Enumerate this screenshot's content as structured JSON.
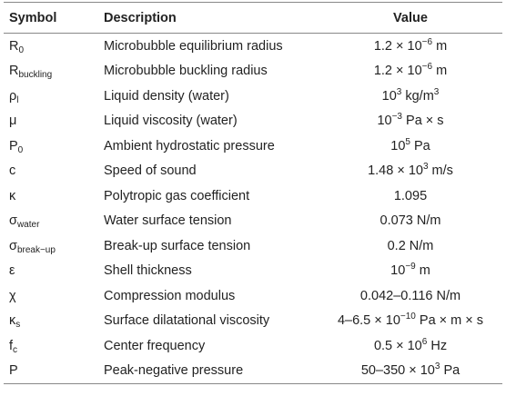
{
  "table": {
    "header": [
      "Symbol",
      "Description",
      "Value"
    ],
    "rows": [
      {
        "symbol": [
          {
            "t": "R"
          },
          {
            "sub": "0"
          }
        ],
        "description": "Microbubble equilibrium radius",
        "value": [
          {
            "t": "1.2 × 10"
          },
          {
            "sup": "−6"
          },
          {
            "t": " m"
          }
        ]
      },
      {
        "symbol": [
          {
            "t": "R"
          },
          {
            "sub": "buckling"
          }
        ],
        "description": "Microbubble buckling radius",
        "value": [
          {
            "t": "1.2 × 10"
          },
          {
            "sup": "−6"
          },
          {
            "t": " m"
          }
        ]
      },
      {
        "symbol": [
          {
            "t": "ρ"
          },
          {
            "sub": "l"
          }
        ],
        "description": "Liquid density (water)",
        "value": [
          {
            "t": "10"
          },
          {
            "sup": "3"
          },
          {
            "t": " kg/m"
          },
          {
            "sup": "3"
          }
        ]
      },
      {
        "symbol": [
          {
            "t": "μ"
          }
        ],
        "description": "Liquid viscosity (water)",
        "value": [
          {
            "t": "10"
          },
          {
            "sup": "−3"
          },
          {
            "t": " Pa × s"
          }
        ]
      },
      {
        "symbol": [
          {
            "t": "P"
          },
          {
            "sub": "0"
          }
        ],
        "description": "Ambient hydrostatic pressure",
        "value": [
          {
            "t": "10"
          },
          {
            "sup": "5"
          },
          {
            "t": " Pa"
          }
        ]
      },
      {
        "symbol": [
          {
            "t": "c"
          }
        ],
        "description": "Speed of sound",
        "value": [
          {
            "t": "1.48 × 10"
          },
          {
            "sup": "3"
          },
          {
            "t": " m/s"
          }
        ]
      },
      {
        "symbol": [
          {
            "t": "κ"
          }
        ],
        "description": "Polytropic gas coefficient",
        "value": [
          {
            "t": "1.095"
          }
        ]
      },
      {
        "symbol": [
          {
            "t": "σ"
          },
          {
            "sub": "water"
          }
        ],
        "description": "Water surface tension",
        "value": [
          {
            "t": "0.073 N/m"
          }
        ]
      },
      {
        "symbol": [
          {
            "t": "σ"
          },
          {
            "sub": "break−up"
          }
        ],
        "description": "Break-up surface tension",
        "value": [
          {
            "t": "0.2 N/m"
          }
        ]
      },
      {
        "symbol": [
          {
            "t": "ε"
          }
        ],
        "description": "Shell thickness",
        "value": [
          {
            "t": "10"
          },
          {
            "sup": "−9"
          },
          {
            "t": " m"
          }
        ]
      },
      {
        "symbol": [
          {
            "t": "χ"
          }
        ],
        "description": "Compression modulus",
        "value": [
          {
            "t": "0.042–0.116 N/m"
          }
        ]
      },
      {
        "symbol": [
          {
            "t": "κ"
          },
          {
            "sub": "s"
          }
        ],
        "description": "Surface dilatational viscosity",
        "value": [
          {
            "t": "4–6.5 × 10"
          },
          {
            "sup": "−10"
          },
          {
            "t": " Pa × m × s"
          }
        ]
      },
      {
        "symbol": [
          {
            "t": "f"
          },
          {
            "sub": "c"
          }
        ],
        "description": "Center frequency",
        "value": [
          {
            "t": "0.5 × 10"
          },
          {
            "sup": "6"
          },
          {
            "t": " Hz"
          }
        ]
      },
      {
        "symbol": [
          {
            "t": "P"
          }
        ],
        "description": "Peak-negative pressure",
        "value": [
          {
            "t": "50–350 × 10"
          },
          {
            "sup": "3"
          },
          {
            "t": " Pa"
          }
        ]
      }
    ]
  }
}
